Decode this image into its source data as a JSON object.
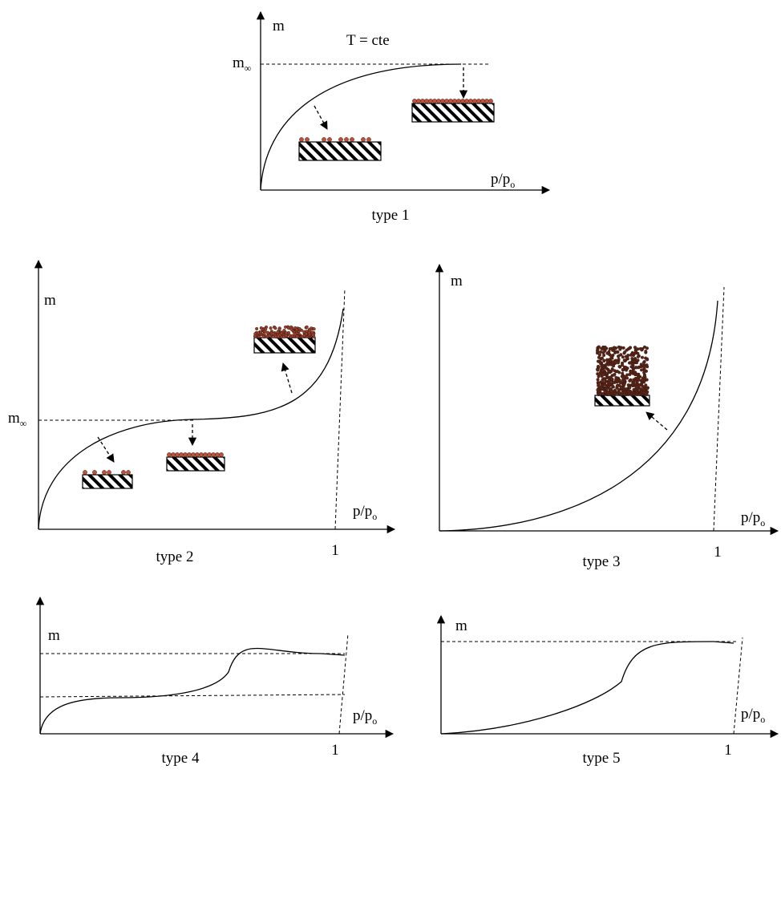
{
  "condition": "T = cte",
  "panels": [
    {
      "title": "type 1",
      "y_label": "m",
      "x_label": {
        "text": "p/p",
        "subscript": "o"
      },
      "m_inf": {
        "text": "m",
        "subscript": "∞"
      }
    },
    {
      "title": "type 2",
      "y_label": "m",
      "x_label": {
        "text": "p/p",
        "subscript": "o"
      },
      "m_inf": {
        "text": "m",
        "subscript": "∞"
      },
      "x_tick": "1"
    },
    {
      "title": "type 3",
      "y_label": "m",
      "x_label": {
        "text": "p/p",
        "subscript": "o"
      },
      "x_tick": "1"
    },
    {
      "title": "type 4",
      "y_label": "m",
      "x_label": {
        "text": "p/p",
        "subscript": "o"
      },
      "x_tick": "1"
    },
    {
      "title": "type 5",
      "y_label": "m",
      "x_label": {
        "text": "p/p",
        "subscript": "o"
      },
      "x_tick": "1"
    }
  ]
}
